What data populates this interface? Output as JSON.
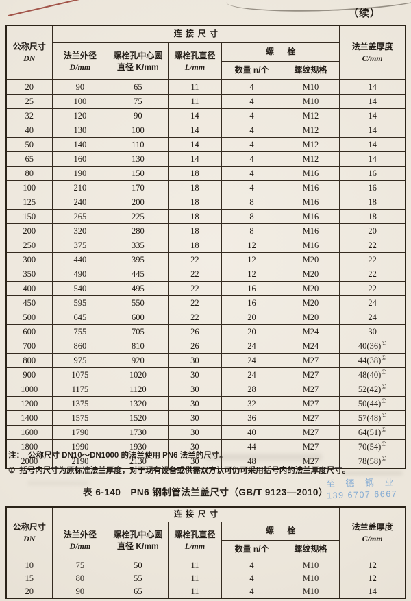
{
  "page": {
    "continued_marker": "（续）"
  },
  "table_header": {
    "nominal_size": "公称尺寸",
    "nominal_size_sub": "DN",
    "connection_dims": "连接尺寸",
    "flange_od": "法兰外径",
    "flange_od_unit": "D/mm",
    "bolt_circle": "螺栓孔中心圆",
    "bolt_circle_unit": "直径 K/mm",
    "bolt_hole_dia": "螺栓孔直径",
    "bolt_hole_unit": "L/mm",
    "bolt_group": "螺栓",
    "bolt_qty": "数量 n/个",
    "thread_spec": "螺纹规格",
    "cover_thickness": "法兰盖厚度",
    "cover_thickness_unit": "C/mm"
  },
  "table1": {
    "rows": [
      [
        "20",
        "90",
        "65",
        "11",
        "4",
        "M10",
        "14"
      ],
      [
        "25",
        "100",
        "75",
        "11",
        "4",
        "M10",
        "14"
      ],
      [
        "32",
        "120",
        "90",
        "14",
        "4",
        "M12",
        "14"
      ],
      [
        "40",
        "130",
        "100",
        "14",
        "4",
        "M12",
        "14"
      ],
      [
        "50",
        "140",
        "110",
        "14",
        "4",
        "M12",
        "14"
      ],
      [
        "65",
        "160",
        "130",
        "14",
        "4",
        "M12",
        "14"
      ],
      [
        "80",
        "190",
        "150",
        "18",
        "4",
        "M16",
        "16"
      ],
      [
        "100",
        "210",
        "170",
        "18",
        "4",
        "M16",
        "16"
      ],
      [
        "125",
        "240",
        "200",
        "18",
        "8",
        "M16",
        "18"
      ],
      [
        "150",
        "265",
        "225",
        "18",
        "8",
        "M16",
        "18"
      ],
      [
        "200",
        "320",
        "280",
        "18",
        "8",
        "M16",
        "20"
      ],
      [
        "250",
        "375",
        "335",
        "18",
        "12",
        "M16",
        "22"
      ],
      [
        "300",
        "440",
        "395",
        "22",
        "12",
        "M20",
        "22"
      ],
      [
        "350",
        "490",
        "445",
        "22",
        "12",
        "M20",
        "22"
      ],
      [
        "400",
        "540",
        "495",
        "22",
        "16",
        "M20",
        "22"
      ],
      [
        "450",
        "595",
        "550",
        "22",
        "16",
        "M20",
        "24"
      ],
      [
        "500",
        "645",
        "600",
        "22",
        "20",
        "M20",
        "24"
      ],
      [
        "600",
        "755",
        "705",
        "26",
        "20",
        "M24",
        "30"
      ],
      [
        "700",
        "860",
        "810",
        "26",
        "24",
        "M24",
        "40(36)①"
      ],
      [
        "800",
        "975",
        "920",
        "30",
        "24",
        "M27",
        "44(38)①"
      ],
      [
        "900",
        "1075",
        "1020",
        "30",
        "24",
        "M27",
        "48(40)①"
      ],
      [
        "1000",
        "1175",
        "1120",
        "30",
        "28",
        "M27",
        "52(42)①"
      ],
      [
        "1200",
        "1375",
        "1320",
        "30",
        "32",
        "M27",
        "50(44)①"
      ],
      [
        "1400",
        "1575",
        "1520",
        "30",
        "36",
        "M27",
        "57(48)①"
      ],
      [
        "1600",
        "1790",
        "1730",
        "30",
        "40",
        "M27",
        "64(51)①"
      ],
      [
        "1800",
        "1990",
        "1930",
        "30",
        "44",
        "M27",
        "70(54)①"
      ],
      [
        "2000",
        "2190",
        "2130",
        "30",
        "48",
        "M27",
        "78(58)①"
      ]
    ]
  },
  "notes": {
    "note1_marker": "注：",
    "note1": "公称尺寸 DN10～DN1000 的法兰使用 PN6 法兰的尺寸。",
    "note2_marker": "①",
    "note2": "括号内尺寸为原标准法兰厚度，对于现有设备或供需双方认可仍可采用括号内的法兰厚度尺寸。"
  },
  "table2": {
    "title": "表 6-140　PN6 钢制管法兰盖尺寸（GB/T 9123—2010）",
    "rows": [
      [
        "10",
        "75",
        "50",
        "11",
        "4",
        "M10",
        "12"
      ],
      [
        "15",
        "80",
        "55",
        "11",
        "4",
        "M10",
        "12"
      ],
      [
        "20",
        "90",
        "65",
        "11",
        "4",
        "M10",
        "14"
      ]
    ]
  },
  "stamp": {
    "line1": "至 德 钢 业",
    "line2": "139 6707 6667",
    "color": "#79a5d3"
  },
  "colors": {
    "paper": "#eee8dd",
    "table_line": "#352b20",
    "text": "#241e18",
    "red_artifact": "#95392f"
  }
}
